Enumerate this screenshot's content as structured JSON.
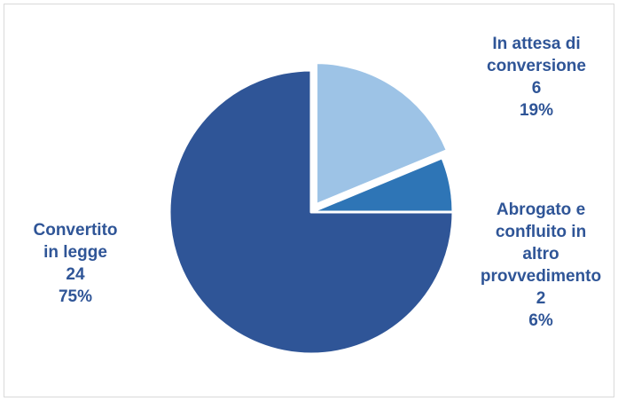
{
  "chart_data": {
    "type": "pie",
    "title": "",
    "slices": [
      {
        "label_lines": [
          "In attesa di",
          "conversione"
        ],
        "value": 6,
        "percent": "19%",
        "color": "#9dc3e6",
        "exploded": true
      },
      {
        "label_lines": [
          "Abrogato e",
          "confluito in",
          "altro",
          "provvedimento"
        ],
        "value": 2,
        "percent": "6%",
        "color": "#2e75b6",
        "exploded": false
      },
      {
        "label_lines": [
          "Convertito",
          "in legge"
        ],
        "value": 24,
        "percent": "75%",
        "color": "#2f5597",
        "exploded": false
      }
    ],
    "label_color": "#2f5597",
    "legend": "none"
  }
}
